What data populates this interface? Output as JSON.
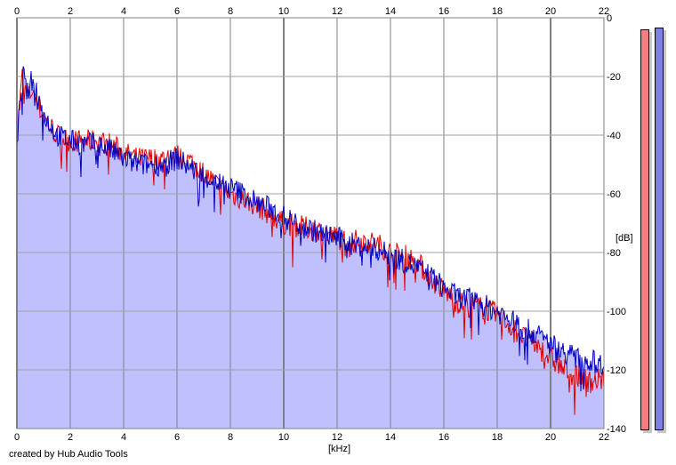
{
  "chart_data": {
    "type": "area",
    "xlabel": "[kHz]",
    "ylabel": "[dB]",
    "x_ticks": [
      "0",
      "2",
      "4",
      "6",
      "8",
      "10",
      "12",
      "14",
      "16",
      "18",
      "20",
      "22"
    ],
    "y_ticks": [
      "0",
      "-20",
      "-40",
      "-60",
      "-80",
      "-100",
      "-120",
      "-140"
    ],
    "xlim": [
      0,
      22
    ],
    "ylim": [
      -140,
      0
    ],
    "grid": true,
    "series": [
      {
        "color": "#e00000",
        "x": [
          0.0,
          0.2,
          0.4,
          0.6,
          0.8,
          1.0,
          1.5,
          2.0,
          2.5,
          3.0,
          3.5,
          4.0,
          4.5,
          5.0,
          5.5,
          6.0,
          6.5,
          7.0,
          7.5,
          8.0,
          8.5,
          9.0,
          9.5,
          10.0,
          10.5,
          11.0,
          11.5,
          12.0,
          12.5,
          13.0,
          13.5,
          14.0,
          14.5,
          15.0,
          15.5,
          16.0,
          16.5,
          17.0,
          17.5,
          18.0,
          18.5,
          19.0,
          19.5,
          20.0,
          20.5,
          21.0,
          21.5,
          22.0
        ],
        "y": [
          -40,
          -20,
          -28,
          -24,
          -30,
          -34,
          -40,
          -42,
          -42,
          -42,
          -43,
          -46,
          -48,
          -48,
          -48,
          -47,
          -49,
          -53,
          -57,
          -60,
          -62,
          -64,
          -67,
          -70,
          -71,
          -72,
          -73,
          -75,
          -76,
          -76,
          -77,
          -80,
          -81,
          -83,
          -89,
          -93,
          -97,
          -98,
          -99,
          -101,
          -105,
          -109,
          -112,
          -116,
          -120,
          -122,
          -124,
          -123
        ]
      },
      {
        "color": "#0000c0",
        "x": [
          0.0,
          0.2,
          0.4,
          0.6,
          0.8,
          1.0,
          1.5,
          2.0,
          2.5,
          3.0,
          3.5,
          4.0,
          4.5,
          5.0,
          5.5,
          6.0,
          6.5,
          7.0,
          7.5,
          8.0,
          8.5,
          9.0,
          9.5,
          10.0,
          10.5,
          11.0,
          11.5,
          12.0,
          12.5,
          13.0,
          13.5,
          14.0,
          14.5,
          15.0,
          15.5,
          16.0,
          16.5,
          17.0,
          17.5,
          18.0,
          18.5,
          19.0,
          19.5,
          20.0,
          20.5,
          21.0,
          21.5,
          22.0
        ],
        "y": [
          -45,
          -18,
          -26,
          -20,
          -27,
          -33,
          -40,
          -42,
          -43,
          -43,
          -45,
          -48,
          -50,
          -50,
          -50,
          -48,
          -51,
          -54,
          -56,
          -58,
          -60,
          -63,
          -65,
          -68,
          -70,
          -72,
          -74,
          -75,
          -77,
          -78,
          -79,
          -81,
          -83,
          -85,
          -88,
          -92,
          -95,
          -96,
          -98,
          -100,
          -103,
          -106,
          -108,
          -111,
          -114,
          -116,
          -117,
          -118
        ]
      }
    ],
    "fill_color": "#c0c0ff"
  },
  "meters": [
    {
      "color": "#f08080",
      "level_db": -3
    },
    {
      "color": "#8080e0",
      "level_db": -2
    }
  ],
  "credit": "created by Hub Audio Tools"
}
